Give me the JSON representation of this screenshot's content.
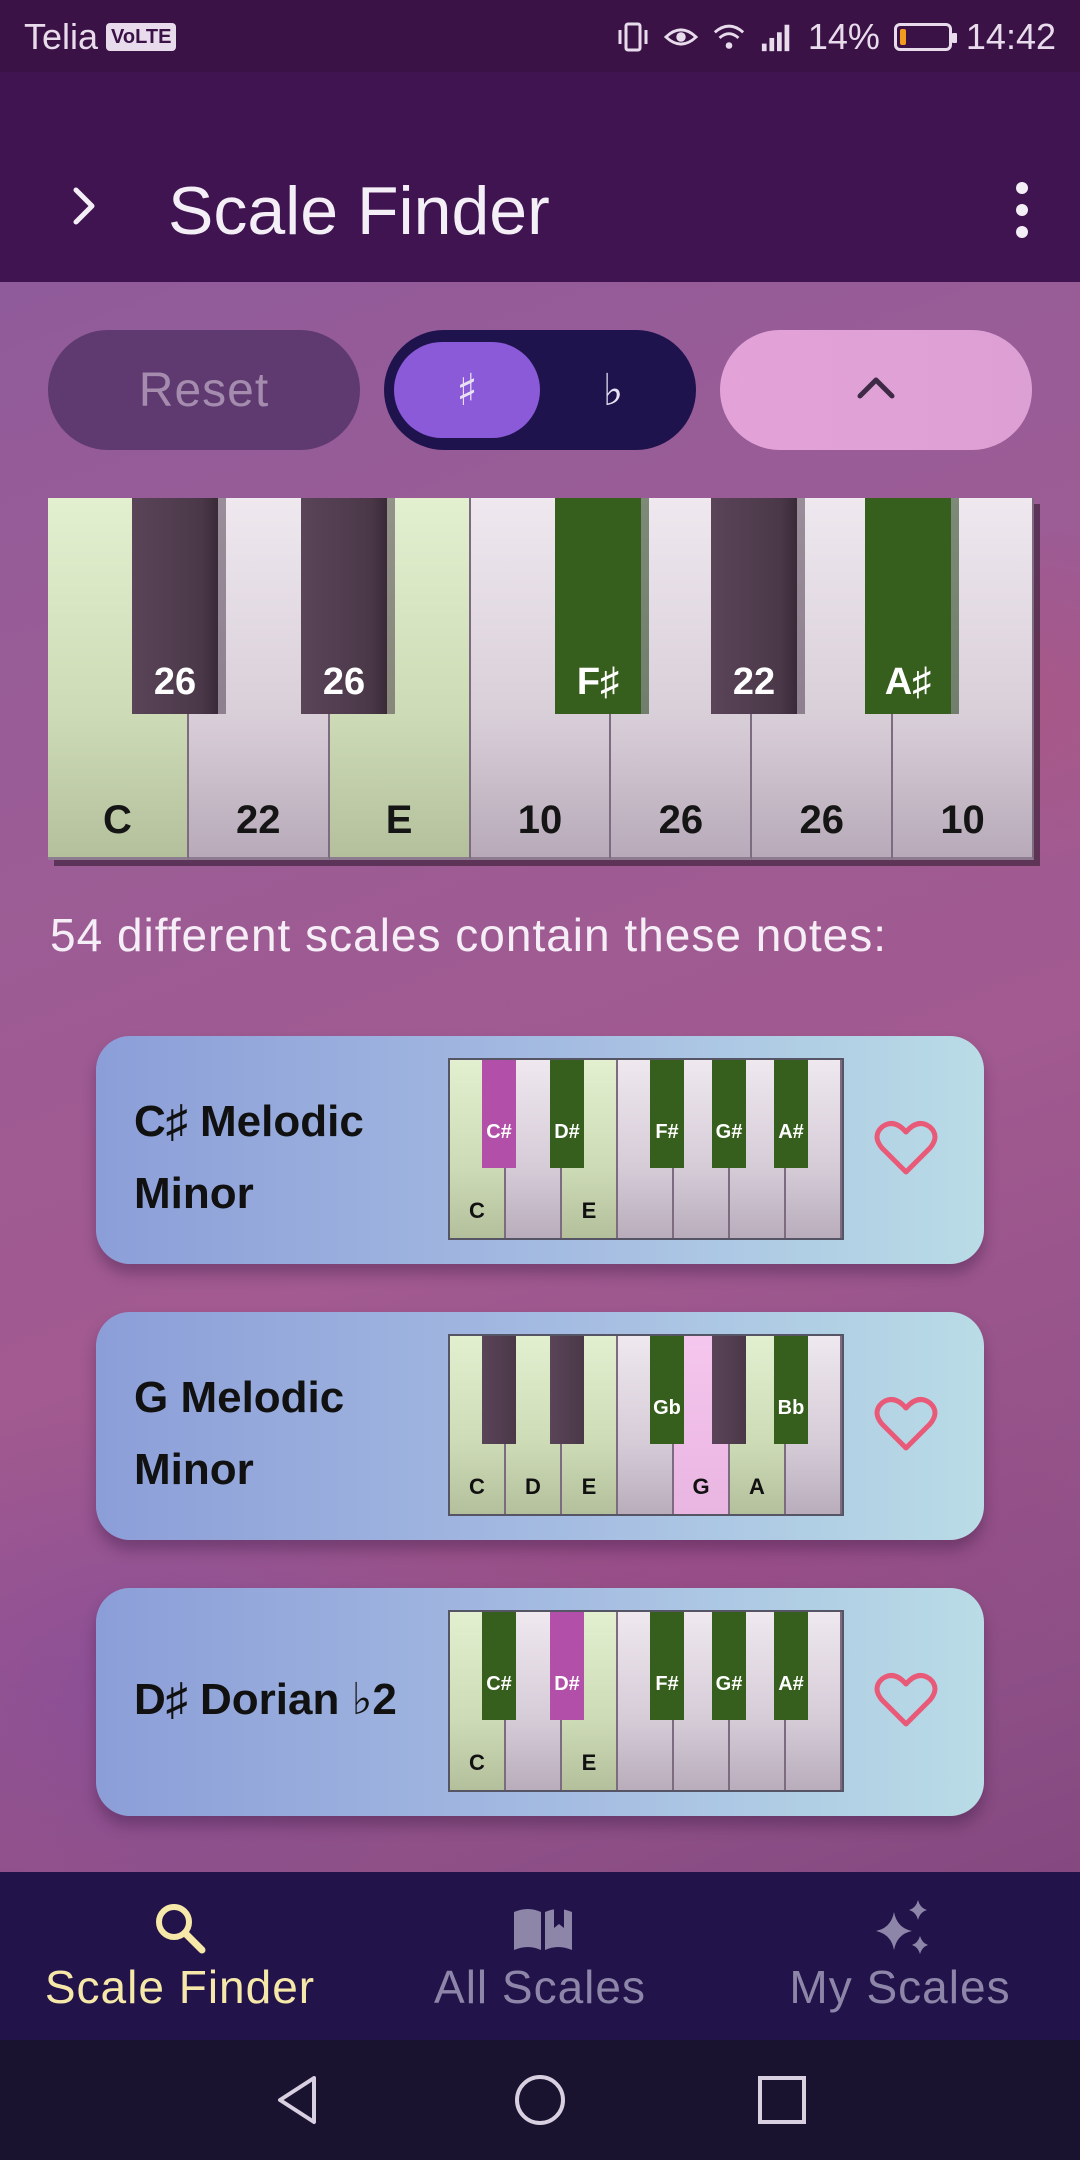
{
  "status_bar": {
    "carrier": "Telia",
    "volte": "VoLTE",
    "battery_percent": "14%",
    "battery_level": 0.14,
    "time": "14:42"
  },
  "app_bar": {
    "title": "Scale Finder"
  },
  "controls": {
    "reset_label": "Reset",
    "sharp_label": "♯",
    "flat_label": "♭",
    "selected_accidental": "sharp"
  },
  "piano": {
    "white_keys": [
      {
        "label": "C",
        "selected": true
      },
      {
        "label": "22",
        "selected": false
      },
      {
        "label": "E",
        "selected": true
      },
      {
        "label": "10",
        "selected": false
      },
      {
        "label": "26",
        "selected": false
      },
      {
        "label": "26",
        "selected": false
      },
      {
        "label": "10",
        "selected": false
      }
    ],
    "black_keys": [
      {
        "label": "26",
        "selected": false
      },
      {
        "label": "26",
        "selected": false
      },
      {
        "label": "F♯",
        "selected": true
      },
      {
        "label": "22",
        "selected": false
      },
      {
        "label": "A♯",
        "selected": true
      }
    ]
  },
  "results": {
    "summary": "54 different scales contain these notes:",
    "cards": [
      {
        "name": "C♯ Melodic Minor",
        "white_keys": [
          {
            "label": "C",
            "state": "sel"
          },
          {
            "label": "",
            "state": ""
          },
          {
            "label": "E",
            "state": "sel"
          },
          {
            "label": "",
            "state": ""
          },
          {
            "label": "",
            "state": ""
          },
          {
            "label": "",
            "state": ""
          },
          {
            "label": "",
            "state": ""
          }
        ],
        "black_keys": [
          {
            "label": "C#",
            "state": "root"
          },
          {
            "label": "D#",
            "state": "sel"
          },
          {
            "label": "F#",
            "state": "sel"
          },
          {
            "label": "G#",
            "state": "sel"
          },
          {
            "label": "A#",
            "state": "sel"
          }
        ]
      },
      {
        "name": "G Melodic Minor",
        "white_keys": [
          {
            "label": "C",
            "state": "sel"
          },
          {
            "label": "D",
            "state": "sel"
          },
          {
            "label": "E",
            "state": "sel"
          },
          {
            "label": "",
            "state": ""
          },
          {
            "label": "G",
            "state": "root"
          },
          {
            "label": "A",
            "state": "sel"
          },
          {
            "label": "",
            "state": ""
          }
        ],
        "black_keys": [
          {
            "label": "",
            "state": ""
          },
          {
            "label": "",
            "state": ""
          },
          {
            "label": "Gb",
            "state": "sel"
          },
          {
            "label": "",
            "state": ""
          },
          {
            "label": "Bb",
            "state": "sel"
          }
        ]
      },
      {
        "name": "D♯ Dorian ♭2",
        "white_keys": [
          {
            "label": "C",
            "state": "sel"
          },
          {
            "label": "",
            "state": ""
          },
          {
            "label": "E",
            "state": "sel"
          },
          {
            "label": "",
            "state": ""
          },
          {
            "label": "",
            "state": ""
          },
          {
            "label": "",
            "state": ""
          },
          {
            "label": "",
            "state": ""
          }
        ],
        "black_keys": [
          {
            "label": "C#",
            "state": "sel"
          },
          {
            "label": "D#",
            "state": "root"
          },
          {
            "label": "F#",
            "state": "sel"
          },
          {
            "label": "G#",
            "state": "sel"
          },
          {
            "label": "A#",
            "state": "sel"
          }
        ]
      }
    ]
  },
  "bottom_nav": {
    "items": [
      {
        "label": "Scale Finder",
        "icon": "search-icon",
        "active": true
      },
      {
        "label": "All Scales",
        "icon": "book-icon",
        "active": false
      },
      {
        "label": "My Scales",
        "icon": "sparkle-icon",
        "active": false
      }
    ]
  },
  "colors": {
    "selected_key": "#365e1c",
    "root_key": "#b24fa8",
    "active_nav": "#f5e8a8",
    "heart": "#e85a78"
  }
}
